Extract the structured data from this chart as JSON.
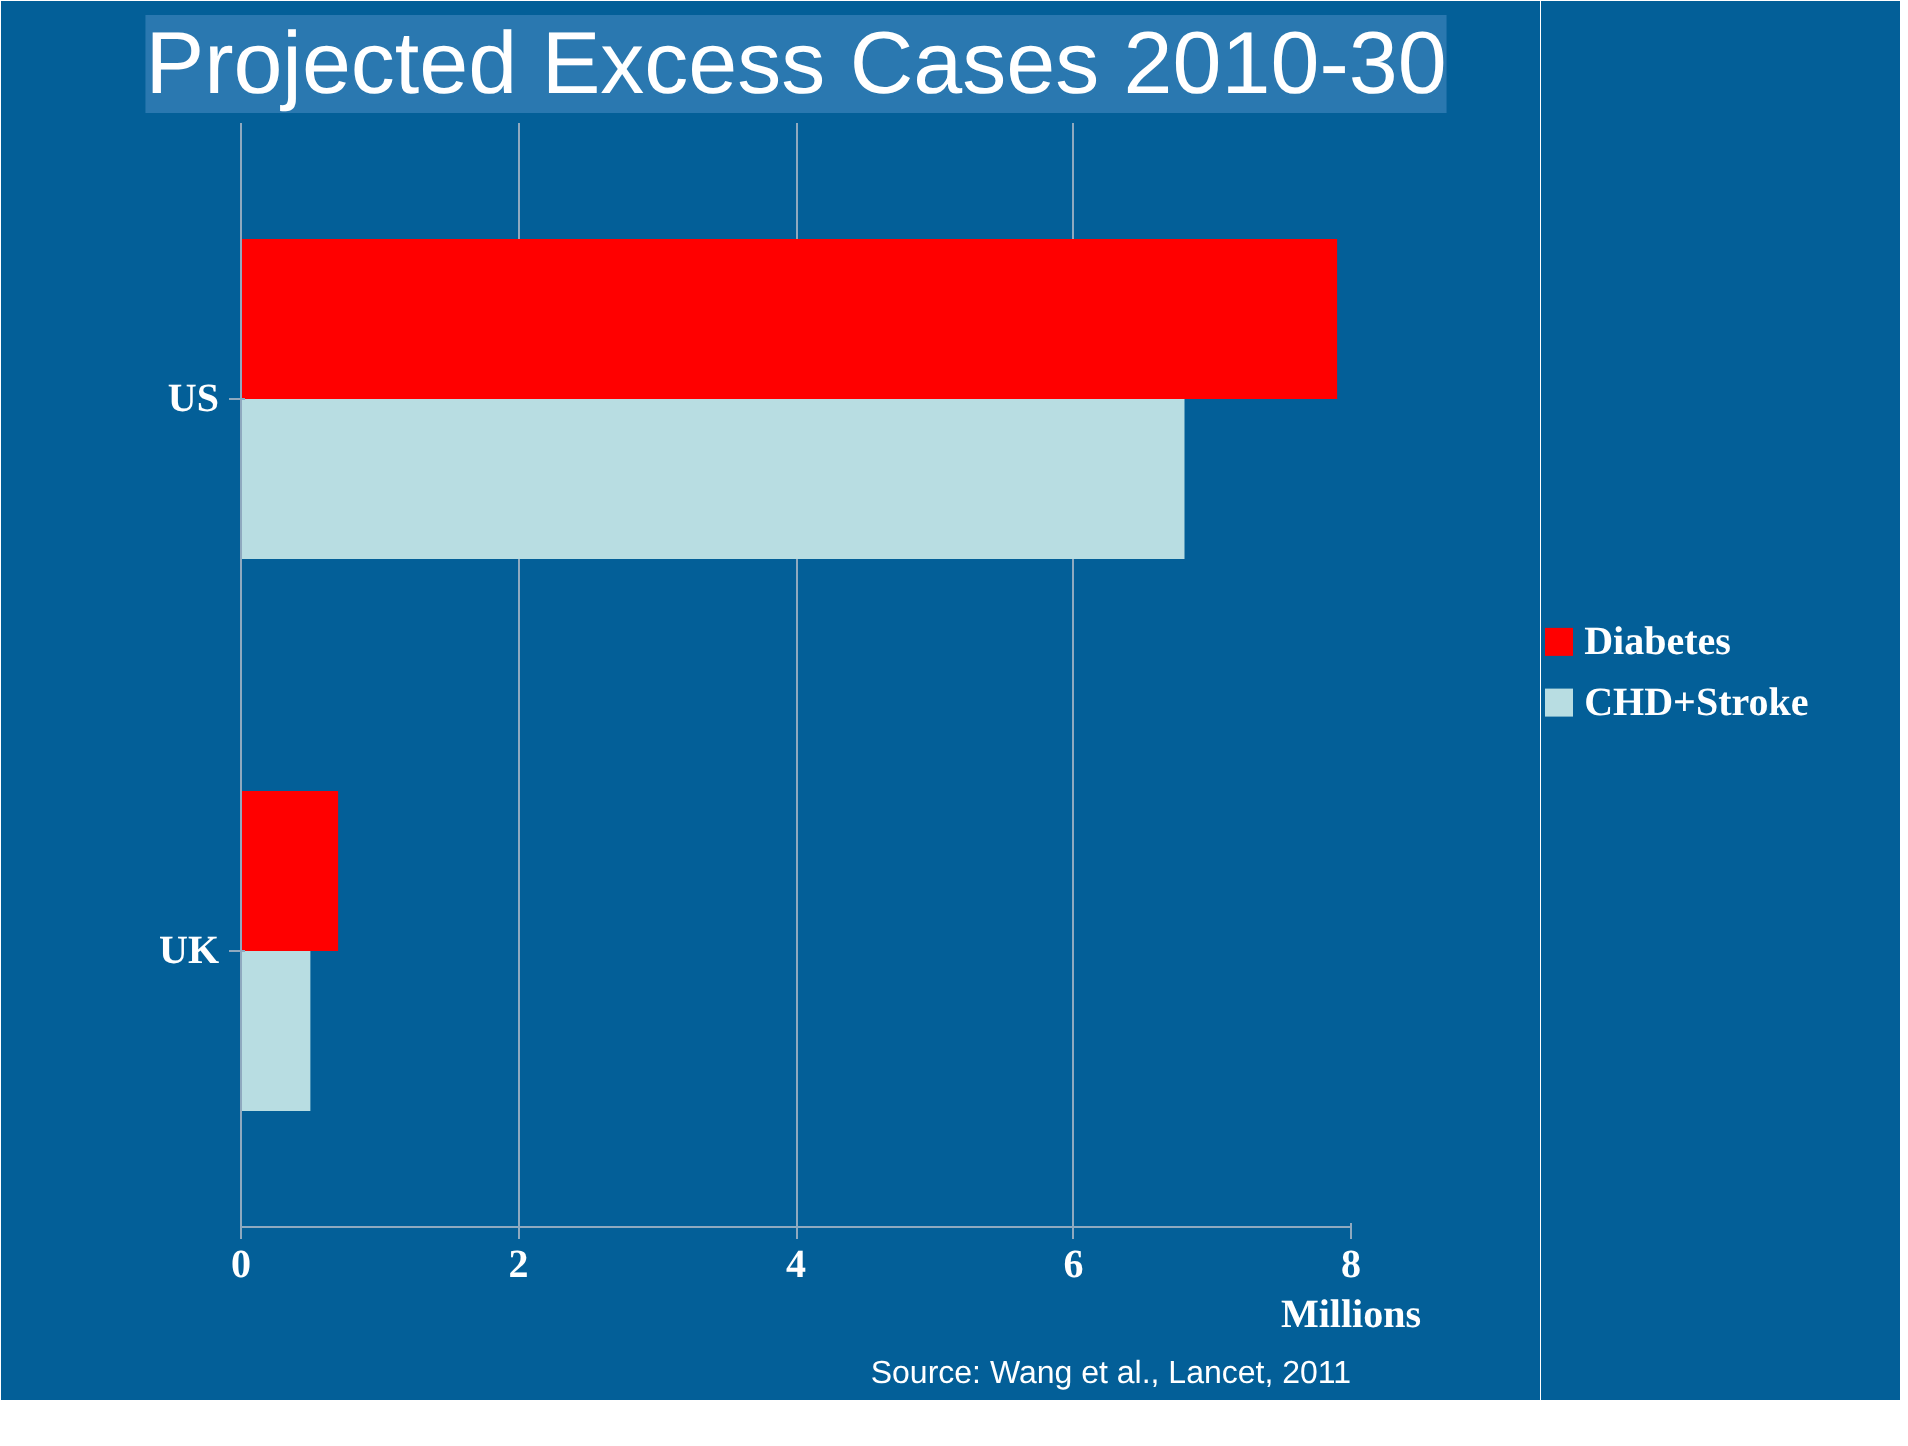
{
  "chart_data": {
    "type": "bar",
    "orientation": "horizontal",
    "title": "Projected Excess Cases 2010-30",
    "xlabel": "Millions",
    "categories": [
      "US",
      "UK"
    ],
    "series": [
      {
        "name": "Diabetes",
        "color": "#ff0000",
        "values": [
          7.9,
          0.7
        ]
      },
      {
        "name": "CHD+Stroke",
        "color": "#b8dde2",
        "values": [
          6.8,
          0.5
        ]
      }
    ],
    "xlim": [
      0,
      8
    ],
    "xticks": [
      0,
      2,
      4,
      6,
      8
    ],
    "grid": "x",
    "legend": "right",
    "annotations": [
      "Source: Wang et al., Lancet, 2011"
    ]
  }
}
